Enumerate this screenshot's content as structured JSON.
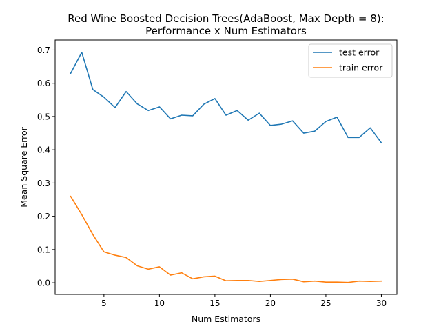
{
  "chart_data": {
    "type": "line",
    "title": "Red Wine Boosted Decision Trees(AdaBoost, Max Depth = 8):",
    "subtitle": "Performance x Num Estimators",
    "xlabel": "Num Estimators",
    "ylabel": "Mean Square Error",
    "xlim": [
      0.6,
      31.4
    ],
    "ylim": [
      -0.035,
      0.73
    ],
    "xticks": [
      5,
      10,
      15,
      20,
      25,
      30
    ],
    "yticks": [
      0.0,
      0.1,
      0.2,
      0.3,
      0.4,
      0.5,
      0.6,
      0.7
    ],
    "ytick_labels": [
      "0.0",
      "0.1",
      "0.2",
      "0.3",
      "0.4",
      "0.5",
      "0.6",
      "0.7"
    ],
    "grid": false,
    "legend_position": "top-right",
    "x": [
      2,
      3,
      4,
      5,
      6,
      7,
      8,
      9,
      10,
      11,
      12,
      13,
      14,
      15,
      16,
      17,
      18,
      19,
      20,
      21,
      22,
      23,
      24,
      25,
      26,
      27,
      28,
      29,
      30
    ],
    "series": [
      {
        "name": "test error",
        "color": "#1f77b4",
        "values": [
          0.63,
          0.693,
          0.581,
          0.558,
          0.527,
          0.575,
          0.538,
          0.518,
          0.529,
          0.493,
          0.504,
          0.502,
          0.537,
          0.554,
          0.504,
          0.518,
          0.489,
          0.51,
          0.473,
          0.477,
          0.487,
          0.45,
          0.456,
          0.485,
          0.498,
          0.437,
          0.437,
          0.466,
          0.421
        ]
      },
      {
        "name": "train error",
        "color": "#ff7f0e",
        "values": [
          0.26,
          0.205,
          0.145,
          0.093,
          0.083,
          0.076,
          0.051,
          0.041,
          0.048,
          0.023,
          0.03,
          0.012,
          0.018,
          0.02,
          0.006,
          0.007,
          0.007,
          0.004,
          0.007,
          0.01,
          0.011,
          0.003,
          0.005,
          0.002,
          0.002,
          0.001,
          0.005,
          0.004,
          0.005
        ]
      }
    ]
  }
}
